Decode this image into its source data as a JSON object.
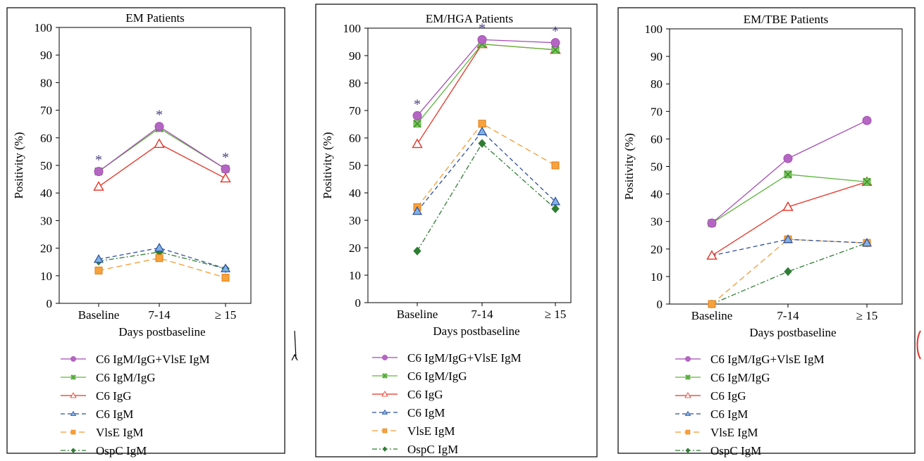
{
  "legend": [
    {
      "key": "c6_igm_igg_vlse",
      "label": "C6 IgM/IgG+VlsE IgM",
      "color": "#A64BB5",
      "marker": "circle",
      "dash": "solid"
    },
    {
      "key": "c6_igm_igg",
      "label": "C6 IgM/IgG",
      "color": "#5DB63E",
      "marker": "x-square",
      "dash": "solid"
    },
    {
      "key": "c6_igg",
      "label": "C6 IgG",
      "color": "#E53225",
      "marker": "triangle-open",
      "dash": "solid"
    },
    {
      "key": "c6_igm",
      "label": "C6 IgM",
      "color": "#2E4F9E",
      "marker": "triangle-blue",
      "dash": "dash"
    },
    {
      "key": "vlse_igm",
      "label": "VlsE IgM",
      "color": "#F39A32",
      "marker": "square",
      "dash": "longdash"
    },
    {
      "key": "ospc_igm",
      "label": "OspC IgM",
      "color": "#2E7D33",
      "marker": "diamond",
      "dash": "dashdot"
    }
  ],
  "chart_data": [
    {
      "type": "line",
      "title": "EM Patients",
      "xlabel": "Days postbaseline",
      "ylabel": "Positivity (%)",
      "categories": [
        "Baseline",
        "7-14",
        "≥ 15"
      ],
      "ylim": [
        0,
        100
      ],
      "yticks": [
        "0",
        "10",
        "20",
        "30",
        "40",
        "50",
        "60",
        "70",
        "80",
        "90",
        "100"
      ],
      "significance_marker": "*",
      "significance_at": [
        "Baseline",
        "7-14",
        "≥ 15"
      ],
      "series": [
        {
          "name": "C6 IgM/IgG+VlsE IgM",
          "values": [
            47.8,
            64.1,
            48.7
          ]
        },
        {
          "name": "C6 IgM/IgG",
          "values": [
            47.8,
            63.5,
            48.7
          ]
        },
        {
          "name": "C6 IgG",
          "values": [
            42.3,
            57.8,
            45.3
          ]
        },
        {
          "name": "C6 IgM",
          "values": [
            16.0,
            20.1,
            12.6
          ]
        },
        {
          "name": "VlsE IgM",
          "values": [
            11.9,
            16.4,
            9.3
          ]
        },
        {
          "name": "OspC IgM",
          "values": [
            15.3,
            18.6,
            12.6
          ]
        }
      ]
    },
    {
      "type": "line",
      "title": "EM/HGA Patients",
      "xlabel": "Days postbaseline",
      "ylabel": "Positivity (%)",
      "categories": [
        "Baseline",
        "7-14",
        "≥ 15"
      ],
      "ylim": [
        0,
        100
      ],
      "yticks": [
        "0",
        "10",
        "20",
        "30",
        "40",
        "50",
        "60",
        "70",
        "80",
        "90",
        "100"
      ],
      "significance_marker": "*",
      "significance_at": [
        "Baseline",
        "7-14",
        "≥ 15"
      ],
      "series": [
        {
          "name": "C6 IgM/IgG+VlsE IgM",
          "values": [
            68.1,
            95.8,
            94.7
          ]
        },
        {
          "name": "C6 IgM/IgG",
          "values": [
            65.2,
            94.2,
            92.1
          ]
        },
        {
          "name": "C6 IgG",
          "values": [
            57.8,
            94.2,
            92.1
          ]
        },
        {
          "name": "C6 IgM",
          "values": [
            33.3,
            62.3,
            36.8
          ]
        },
        {
          "name": "VlsE IgM",
          "values": [
            34.8,
            65.2,
            50.0
          ]
        },
        {
          "name": "OspC IgM",
          "values": [
            18.8,
            58.0,
            34.2
          ]
        }
      ]
    },
    {
      "type": "line",
      "title": "EM/TBE Patients",
      "xlabel": "Days postbaseline",
      "ylabel": "Positivity (%)",
      "categories": [
        "Baseline",
        "7-14",
        "≥ 15"
      ],
      "ylim": [
        0,
        100
      ],
      "yticks": [
        "0",
        "10",
        "20",
        "30",
        "40",
        "50",
        "60",
        "70",
        "80",
        "90",
        "100"
      ],
      "significance_marker": "",
      "significance_at": [],
      "series": [
        {
          "name": "C6 IgM/IgG+VlsE IgM",
          "values": [
            29.4,
            52.9,
            66.7
          ]
        },
        {
          "name": "C6 IgM/IgG",
          "values": [
            29.4,
            47.1,
            44.4
          ]
        },
        {
          "name": "C6 IgG",
          "values": [
            17.6,
            35.3,
            44.4
          ]
        },
        {
          "name": "C6 IgM",
          "values": [
            17.6,
            23.5,
            22.2
          ]
        },
        {
          "name": "VlsE IgM",
          "values": [
            0,
            23.5,
            22.2
          ]
        },
        {
          "name": "OspC IgM",
          "values": [
            0,
            11.8,
            22.2
          ]
        }
      ]
    }
  ]
}
